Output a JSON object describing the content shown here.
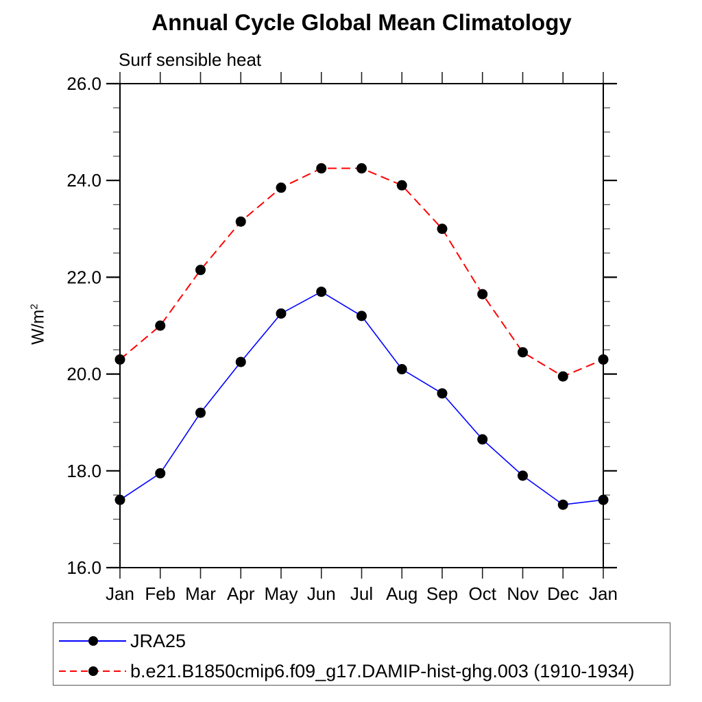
{
  "page": {
    "title": "Annual Cycle Global Mean Climatology",
    "subtitle": "Surf sensible heat",
    "y_axis_label": "W/m",
    "y_axis_label_exponent": "2"
  },
  "legend": {
    "items": [
      {
        "label": "JRA25",
        "color": "#0000ff",
        "line_style": "solid",
        "marker": "filled-circle",
        "marker_color": "#000000"
      },
      {
        "label": "b.e21.B1850cmip6.f09_g17.DAMIP-hist-ghg.003 (1910-1934)",
        "color": "#ff0000",
        "line_style": "dashed",
        "marker": "filled-circle",
        "marker_color": "#000000"
      }
    ]
  },
  "chart_data": {
    "type": "line",
    "title": "Annual Cycle Global Mean Climatology",
    "subtitle": "Surf sensible heat",
    "xlabel": "",
    "ylabel": "W/m²",
    "categories": [
      "Jan",
      "Feb",
      "Mar",
      "Apr",
      "May",
      "Jun",
      "Jul",
      "Aug",
      "Sep",
      "Oct",
      "Nov",
      "Dec",
      "Jan"
    ],
    "series": [
      {
        "name": "JRA25",
        "color": "#0000ff",
        "line_style": "solid",
        "marker": "filled-circle",
        "marker_color": "#000000",
        "values": [
          17.4,
          17.95,
          19.2,
          20.25,
          21.25,
          21.7,
          21.2,
          20.1,
          19.6,
          18.65,
          17.9,
          17.3,
          17.4
        ]
      },
      {
        "name": "b.e21.B1850cmip6.f09_g17.DAMIP-hist-ghg.003 (1910-1934)",
        "color": "#ff0000",
        "line_style": "dashed",
        "marker": "filled-circle",
        "marker_color": "#000000",
        "values": [
          20.3,
          21.0,
          22.15,
          23.15,
          23.85,
          24.25,
          24.25,
          23.9,
          23.0,
          21.65,
          20.45,
          19.95,
          20.3
        ]
      }
    ],
    "ylim": [
      16.0,
      26.0
    ],
    "ytick_major_values": [
      16.0,
      18.0,
      20.0,
      22.0,
      24.0,
      26.0
    ],
    "ytick_major_labels": [
      "16.0",
      "18.0",
      "20.0",
      "22.0",
      "24.0",
      "26.0"
    ],
    "ytick_minor_step": 0.5,
    "grid": false,
    "legend_position": "bottom"
  }
}
